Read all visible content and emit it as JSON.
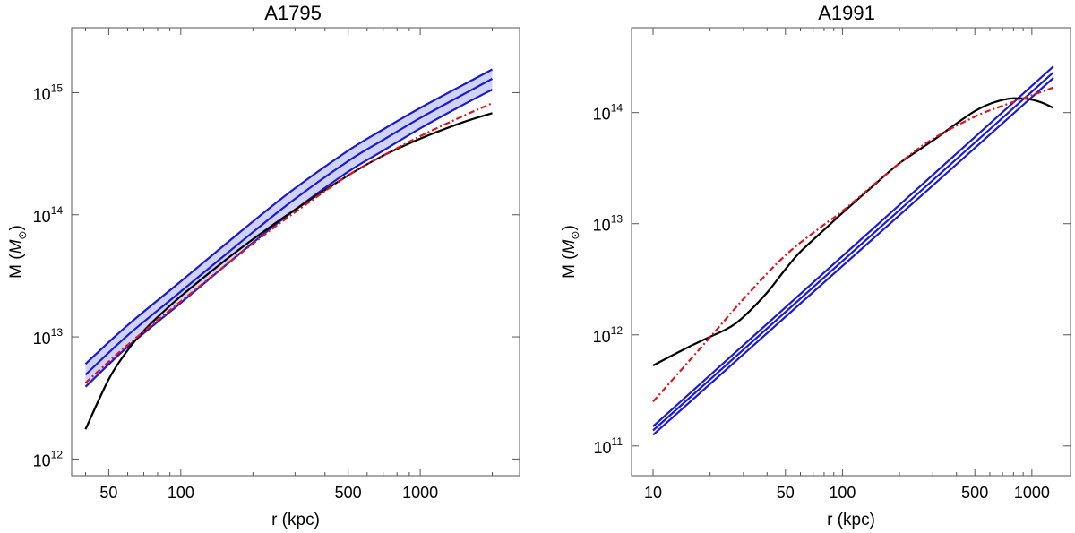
{
  "chart_data": [
    {
      "type": "line",
      "title": "A1795",
      "xlabel": "r (kpc)",
      "ylabel_text": "M (",
      "ylabel_sym": "M",
      "ylabel_sub": "⊙",
      "ylabel_close": ")",
      "xscale": "log",
      "yscale": "log",
      "xlim": [
        35,
        2600
      ],
      "ylim": [
        730000000000.0,
        3400000000000000.0
      ],
      "x_ticks": [
        {
          "value": 50,
          "label": "50"
        },
        {
          "value": 100,
          "label": "100"
        },
        {
          "value": 500,
          "label": "500"
        },
        {
          "value": 1000,
          "label": "1000"
        }
      ],
      "y_ticks": [
        {
          "value": 1000000000000.0,
          "base": "10",
          "exp": "12"
        },
        {
          "value": 10000000000000.0,
          "base": "10",
          "exp": "13"
        },
        {
          "value": 100000000000000.0,
          "base": "10",
          "exp": "14"
        },
        {
          "value": 1000000000000000.0,
          "base": "10",
          "exp": "15"
        }
      ],
      "x_minor_ticks": [
        40,
        60,
        70,
        80,
        90,
        200,
        300,
        400,
        600,
        700,
        800,
        900,
        2000
      ],
      "grid": false,
      "band": {
        "color": "#d0d3f4",
        "from_series": 0,
        "to_series": 2
      },
      "series": [
        {
          "color": "#1a1ad6",
          "style": "solid",
          "x": [
            40,
            60,
            100,
            200,
            300,
            500,
            700,
            1000,
            1500,
            2000
          ],
          "y": [
            6000000000000.0,
            12500000000000.0,
            28500000000000.0,
            88000000000000.0,
            165000000000000.0,
            335000000000000.0,
            500000000000000.0,
            750000000000000.0,
            1150000000000000.0,
            1550000000000000.0
          ]
        },
        {
          "color": "#1a1ad6",
          "style": "solid",
          "x": [
            40,
            60,
            100,
            200,
            300,
            500,
            700,
            1000,
            1500,
            2000
          ],
          "y": [
            4900000000000.0,
            10300000000000.0,
            23500000000000.0,
            72000000000000.0,
            135000000000000.0,
            275000000000000.0,
            410000000000000.0,
            620000000000000.0,
            960000000000000.0,
            1300000000000000.0
          ]
        },
        {
          "color": "#1a1ad6",
          "style": "solid",
          "x": [
            40,
            60,
            100,
            200,
            300,
            500,
            700,
            1000,
            1500,
            2000
          ],
          "y": [
            3900000000000.0,
            8300000000000.0,
            19000000000000.0,
            59000000000000.0,
            110000000000000.0,
            225000000000000.0,
            335000000000000.0,
            510000000000000.0,
            790000000000000.0,
            1060000000000000.0
          ]
        },
        {
          "color": "#000000",
          "style": "solid",
          "x": [
            40,
            50,
            60,
            70,
            80,
            100,
            150,
            200,
            300,
            500,
            700,
            1000,
            1500,
            2000
          ],
          "y": [
            1750000000000.0,
            4500000000000.0,
            7800000000000.0,
            11200000000000.0,
            14500000000000.0,
            21500000000000.0,
            41000000000000.0,
            63000000000000.0,
            110000000000000.0,
            210000000000000.0,
            305000000000000.0,
            420000000000000.0,
            570000000000000.0,
            680000000000000.0
          ]
        },
        {
          "color": "#e0141e",
          "style": "dashdot",
          "x": [
            40,
            60,
            100,
            200,
            300,
            500,
            700,
            1000,
            1500,
            2000
          ],
          "y": [
            4200000000000.0,
            8600000000000.0,
            19500000000000.0,
            58000000000000.0,
            105000000000000.0,
            210000000000000.0,
            305000000000000.0,
            440000000000000.0,
            640000000000000.0,
            820000000000000.0
          ]
        }
      ]
    },
    {
      "type": "line",
      "title": "A1991",
      "xlabel": "r (kpc)",
      "ylabel_text": "M (",
      "ylabel_sym": "M",
      "ylabel_sub": "⊙",
      "ylabel_close": ")",
      "xscale": "log",
      "yscale": "log",
      "xlim": [
        7.7,
        1600
      ],
      "ylim": [
        54000000000.0,
        580000000000000.0
      ],
      "x_ticks": [
        {
          "value": 10,
          "label": "10"
        },
        {
          "value": 50,
          "label": "50"
        },
        {
          "value": 100,
          "label": "100"
        },
        {
          "value": 500,
          "label": "500"
        },
        {
          "value": 1000,
          "label": "1000"
        }
      ],
      "y_ticks": [
        {
          "value": 100000000000.0,
          "base": "10",
          "exp": "11"
        },
        {
          "value": 1000000000000.0,
          "base": "10",
          "exp": "12"
        },
        {
          "value": 10000000000000.0,
          "base": "10",
          "exp": "13"
        },
        {
          "value": 100000000000000.0,
          "base": "10",
          "exp": "14"
        }
      ],
      "x_minor_ticks": [
        20,
        30,
        40,
        60,
        70,
        80,
        90,
        200,
        300,
        400,
        600,
        700,
        800,
        900
      ],
      "grid": false,
      "band": null,
      "series": [
        {
          "color": "#1a1ad6",
          "style": "solid",
          "x": [
            10,
            1300
          ],
          "y": [
            150000000000.0,
            260000000000000.0
          ]
        },
        {
          "color": "#1a1ad6",
          "style": "solid",
          "x": [
            10,
            1300
          ],
          "y": [
            138000000000.0,
            230000000000000.0
          ]
        },
        {
          "color": "#1a1ad6",
          "style": "solid",
          "x": [
            10,
            1300
          ],
          "y": [
            126000000000.0,
            205000000000000.0
          ]
        },
        {
          "color": "#000000",
          "style": "solid",
          "x": [
            10,
            15,
            20,
            25,
            30,
            40,
            50,
            60,
            80,
            100,
            150,
            200,
            300,
            500,
            700,
            900,
            1100,
            1300
          ],
          "y": [
            530000000000.0,
            760000000000.0,
            960000000000.0,
            1150000000000.0,
            1450000000000.0,
            2400000000000.0,
            3900000000000.0,
            5600000000000.0,
            8800000000000.0,
            12500000000000.0,
            23000000000000.0,
            35000000000000.0,
            56000000000000.0,
            103000000000000.0,
            130000000000000.0,
            134000000000000.0,
            125000000000000.0,
            110000000000000.0
          ]
        },
        {
          "color": "#e0141e",
          "style": "dashdot",
          "x": [
            10,
            20,
            30,
            50,
            80,
            100,
            200,
            300,
            500,
            700,
            1000,
            1300
          ],
          "y": [
            250000000000.0,
            950000000000.0,
            2100000000000.0,
            5200000000000.0,
            9800000000000.0,
            13000000000000.0,
            35000000000000.0,
            58000000000000.0,
            92000000000000.0,
            115000000000000.0,
            143000000000000.0,
            168000000000000.0
          ]
        }
      ]
    }
  ]
}
